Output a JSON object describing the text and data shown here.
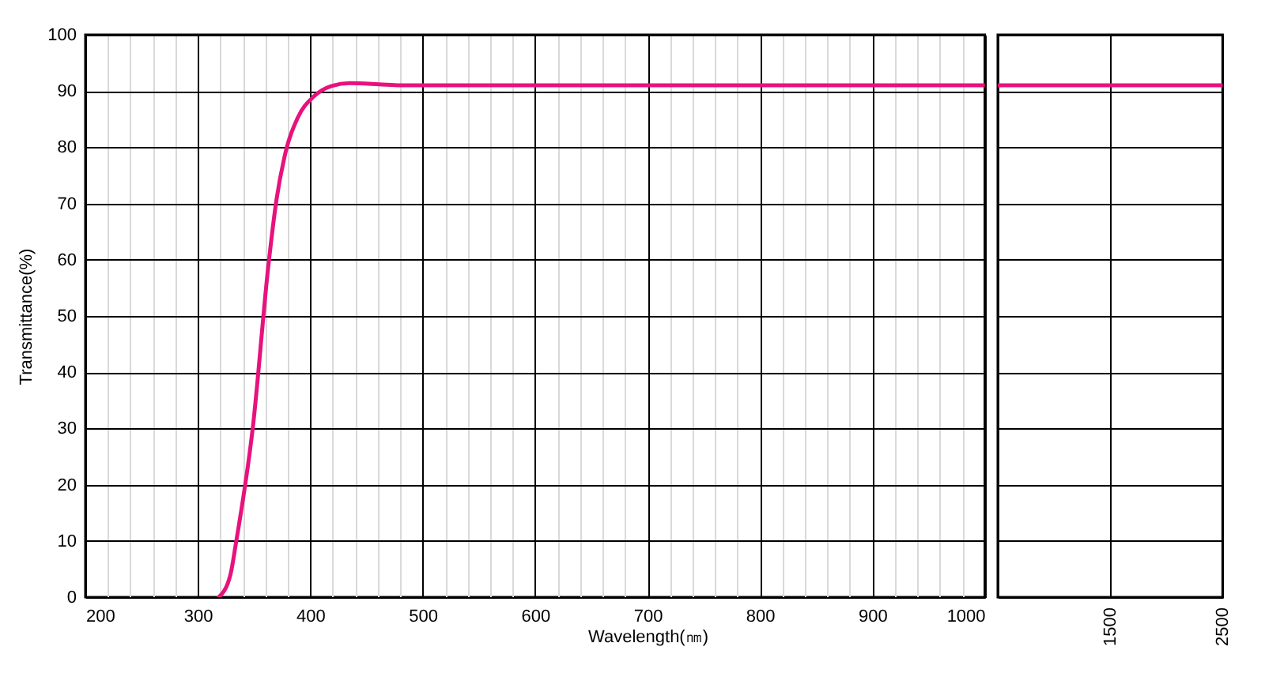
{
  "chart_data": [
    {
      "type": "line",
      "xlabel": "Wavelength(㎚)",
      "ylabel": "Transmittance(%)",
      "x": [
        318.7,
        329,
        334,
        349,
        363,
        370,
        377,
        389,
        403,
        419,
        435,
        461,
        480,
        600,
        1000
      ],
      "series": [
        {
          "color": "#e8127c",
          "values": [
            0,
            4,
            9.7,
            30.3,
            59.4,
            70.7,
            78.2,
            85.3,
            89,
            90.9,
            91.4,
            91.2,
            91,
            91,
            91
          ]
        }
      ],
      "xlim": [
        200,
        1000
      ],
      "xticks": [
        200,
        {
          "value": 220,
          "label": null
        },
        {
          "value": 240,
          "label": null
        },
        {
          "value": 260,
          "label": null
        },
        {
          "value": 280,
          "label": null
        },
        300,
        {
          "value": 320,
          "label": null
        },
        {
          "value": 340,
          "label": null
        },
        {
          "value": 360,
          "label": null
        },
        {
          "value": 380,
          "label": null
        },
        400,
        {
          "value": 420,
          "label": null
        },
        {
          "value": 440,
          "label": null
        },
        {
          "value": 460,
          "label": null
        },
        {
          "value": 480,
          "label": null
        },
        500,
        {
          "value": 520,
          "label": null
        },
        {
          "value": 540,
          "label": null
        },
        {
          "value": 560,
          "label": null
        },
        {
          "value": 580,
          "label": null
        },
        600,
        {
          "value": 620,
          "label": null
        },
        {
          "value": 640,
          "label": null
        },
        {
          "value": 660,
          "label": null
        },
        {
          "value": 680,
          "label": null
        },
        700,
        {
          "value": 720,
          "label": null
        },
        {
          "value": 740,
          "label": null
        },
        {
          "value": 760,
          "label": null
        },
        {
          "value": 780,
          "label": null
        },
        800,
        {
          "value": 820,
          "label": null
        },
        {
          "value": 840,
          "label": null
        },
        {
          "value": 860,
          "label": null
        },
        {
          "value": 880,
          "label": null
        },
        900,
        {
          "value": 920,
          "label": null
        },
        {
          "value": 940,
          "label": null
        },
        {
          "value": 960,
          "label": null
        },
        {
          "value": 980,
          "label": null
        },
        1000
      ],
      "ylim": [
        0,
        100
      ],
      "yticks": [
        0,
        10,
        20,
        30,
        40,
        50,
        60,
        70,
        80,
        90,
        100
      ],
      "grid": true,
      "marker": "none",
      "line_style": "solid"
    },
    {
      "type": "line",
      "categories": [
        null,
        "1500",
        "2500"
      ],
      "series": [
        {
          "color": "#e8127c",
          "values": [
            91,
            91,
            91
          ]
        }
      ],
      "ylim": [
        0,
        100
      ],
      "yticks": [
        0,
        10,
        20,
        30,
        40,
        50,
        60,
        70,
        80,
        90,
        100
      ],
      "grid": true,
      "line_style": "solid",
      "tick_labels": "x"
    }
  ]
}
